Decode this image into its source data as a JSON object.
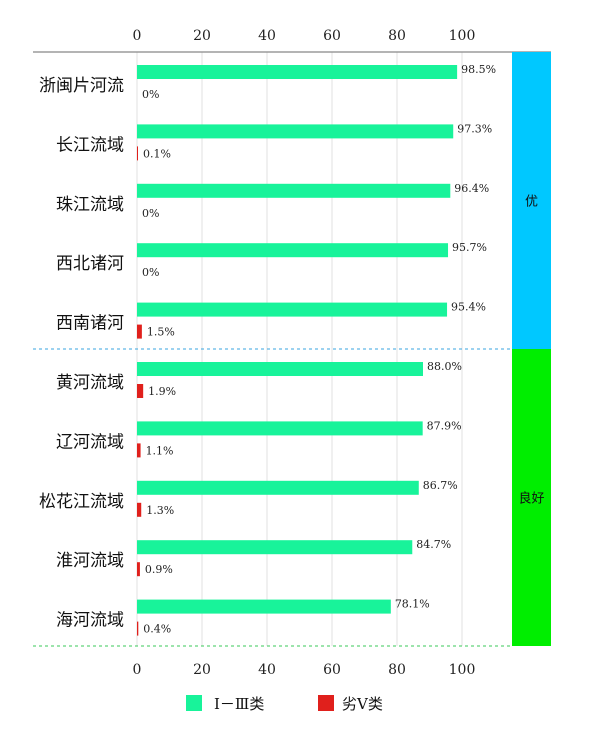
{
  "chart_data": {
    "type": "bar",
    "orientation": "horizontal",
    "categories": [
      "浙闽片河流",
      "长江流域",
      "珠江流域",
      "西北诸河",
      "西南诸河",
      "黄河流域",
      "辽河流域",
      "松花江流域",
      "淮河流域",
      "海河流域"
    ],
    "series": [
      {
        "name": "Ⅰ－Ⅲ类",
        "color": "#18f39a",
        "values": [
          98.5,
          97.3,
          96.4,
          95.7,
          95.4,
          88.0,
          87.9,
          86.7,
          84.7,
          78.1
        ],
        "labels": [
          "98.5%",
          "97.3%",
          "96.4%",
          "95.7%",
          "95.4%",
          "88.0%",
          "87.9%",
          "86.7%",
          "84.7%",
          "78.1%"
        ]
      },
      {
        "name": "劣Ⅴ类",
        "color": "#e0201c",
        "values": [
          0,
          0.1,
          0,
          0,
          1.5,
          1.9,
          1.1,
          1.3,
          0.9,
          0.4
        ],
        "labels": [
          "0%",
          "0.1%",
          "0%",
          "0%",
          "1.5%",
          "1.9%",
          "1.1%",
          "1.3%",
          "0.9%",
          "0.4%"
        ]
      }
    ],
    "xlim": [
      0,
      100
    ],
    "xticks": [
      0,
      20,
      40,
      60,
      80,
      100
    ],
    "grid": true,
    "legend_position": "bottom",
    "bands": [
      {
        "label": "优",
        "color": "#00c8ff",
        "categories": 5
      },
      {
        "label": "良好",
        "color": "#00ee00",
        "categories": 5
      }
    ]
  }
}
